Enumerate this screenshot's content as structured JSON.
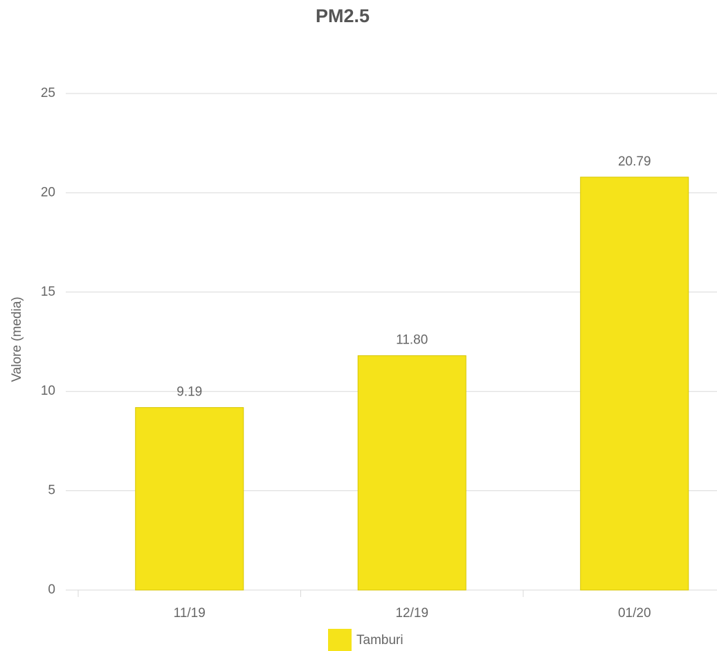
{
  "chart_data": {
    "type": "bar",
    "title": "PM2.5",
    "y_label": "Valore (media)",
    "categories": [
      "11/19",
      "12/19",
      "01/20"
    ],
    "series": [
      {
        "name": "Tamburi",
        "color": "#f5e31a",
        "values": [
          9.19,
          11.8,
          20.79
        ],
        "value_labels": [
          "9.19",
          "11.80",
          "20.79"
        ]
      }
    ],
    "ylim": [
      0,
      25
    ],
    "yticks": [
      0,
      5,
      10,
      15,
      20,
      25
    ],
    "grid": true,
    "legend": "bottom"
  }
}
